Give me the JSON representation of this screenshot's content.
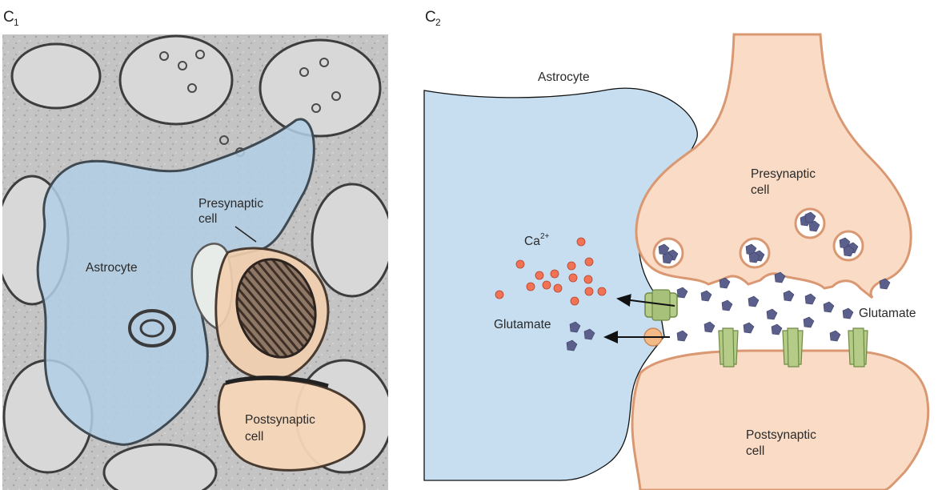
{
  "panels": {
    "c1": {
      "letter": "C",
      "index": "1"
    },
    "c2": {
      "letter": "C",
      "index": "2"
    }
  },
  "c1_labels": {
    "presynaptic": [
      "Presynaptic",
      "cell"
    ],
    "astrocyte": "Astrocyte",
    "postsynaptic": [
      "Postsynaptic",
      "cell"
    ]
  },
  "c2_labels": {
    "astrocyte": "Astrocyte",
    "presynaptic": [
      "Presynaptic",
      "cell"
    ],
    "postsynaptic": [
      "Postsynaptic",
      "cell"
    ],
    "calcium_base": "Ca",
    "calcium_charge": "2+",
    "glutamate_left": "Glutamate",
    "glutamate_right": "Glutamate"
  },
  "colors": {
    "astrocyte_fill": "#c6deef",
    "neuron_fill": "#fadcc6",
    "neuron_stroke": "#d99872",
    "receptor_fill": "#b5cc88",
    "calcium_dot": "#f07355",
    "glutamate": "#5b5f8c",
    "micrograph_gray": "#b9b9b9"
  },
  "icons": {
    "vesicle": "vesicle-icon",
    "receptor": "receptor-icon",
    "transporter": "transporter-icon",
    "arrow": "arrow-icon"
  }
}
